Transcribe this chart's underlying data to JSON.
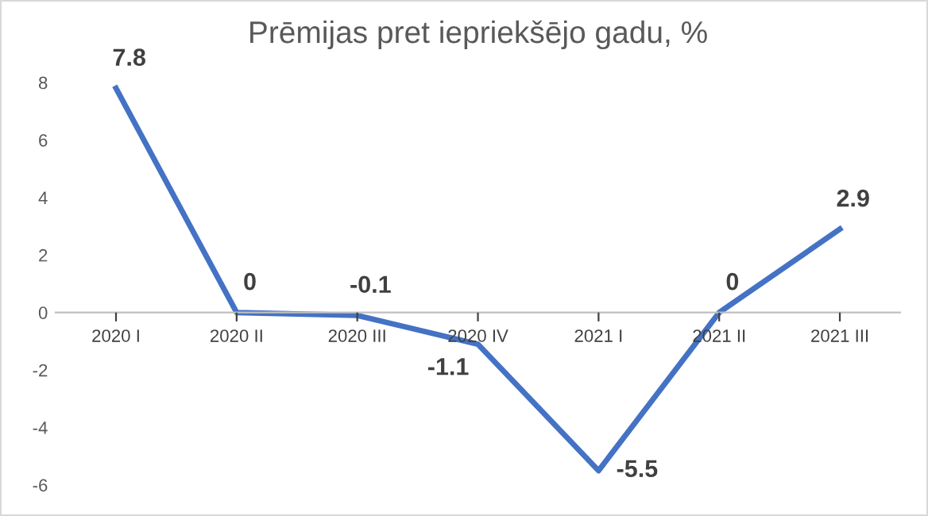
{
  "chart_data": {
    "type": "line",
    "title": "Prēmijas pret iepriekšējo gadu, %",
    "categories": [
      "2020 I",
      "2020 II",
      "2020 III",
      "2020 IV",
      "2021 I",
      "2021 II",
      "2021 III"
    ],
    "series": [
      {
        "color": "#4472c4",
        "values": [
          7.8,
          0,
          -0.1,
          -1.1,
          -5.5,
          0,
          2.9
        ]
      }
    ],
    "ylim": [
      -6,
      8
    ],
    "yticks": [
      -6,
      -4,
      -2,
      0,
      2,
      4,
      6,
      8
    ],
    "grid": false,
    "data_labels": true,
    "marker": "none",
    "line_style": "solid"
  }
}
